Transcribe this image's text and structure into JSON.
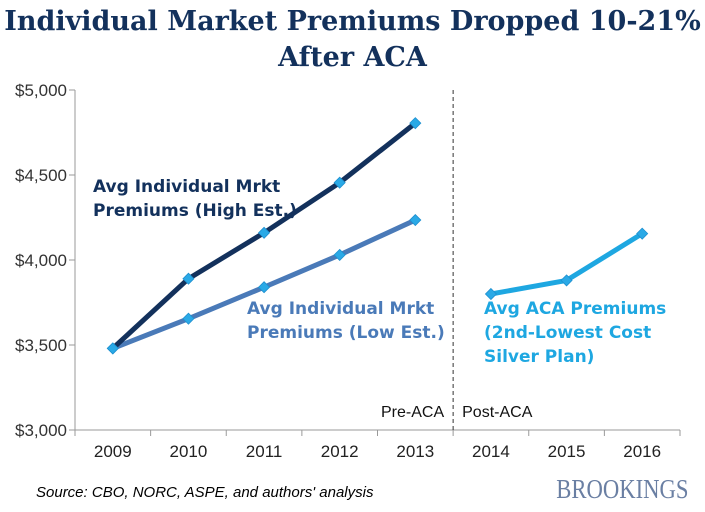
{
  "title_line1": "Individual Market Premiums Dropped 10-21%",
  "title_line2": "After ACA",
  "source": "Source: CBO, NORC, ASPE, and authors' analysis",
  "logo": "BROOKINGS",
  "chart_data": {
    "type": "line",
    "x": [
      2009,
      2010,
      2011,
      2012,
      2013,
      2014,
      2015,
      2016
    ],
    "ylim": [
      3000,
      5000
    ],
    "yticks": [
      3000,
      3500,
      4000,
      4500,
      5000
    ],
    "ytick_labels": [
      "$3,000",
      "$3,500",
      "$4,000",
      "$4,500",
      "$5,000"
    ],
    "xtick_labels": [
      "2009",
      "2010",
      "2011",
      "2012",
      "2013",
      "2014",
      "2015",
      "2016"
    ],
    "grid": false,
    "divider": {
      "after_x": 2013,
      "left_label": "Pre-ACA",
      "right_label": "Post-ACA"
    },
    "series": [
      {
        "name_lines": [
          "Avg Individual Mrkt",
          "Premiums (High Est.)"
        ],
        "color": "#13315c",
        "x": [
          2009,
          2010,
          2011,
          2012,
          2013
        ],
        "values": [
          3480,
          3890,
          4160,
          4455,
          4805
        ]
      },
      {
        "name_lines": [
          "Avg Individual Mrkt",
          "Premiums (Low Est.)"
        ],
        "color": "#4a7ab8",
        "x": [
          2009,
          2010,
          2011,
          2012,
          2013
        ],
        "values": [
          3480,
          3655,
          3840,
          4030,
          4235
        ]
      },
      {
        "name_lines": [
          "Avg ACA Premiums",
          "(2nd-Lowest Cost",
          "Silver Plan)"
        ],
        "color": "#1ea7e1",
        "x": [
          2014,
          2015,
          2016
        ],
        "values": [
          3800,
          3880,
          4155
        ]
      }
    ]
  }
}
